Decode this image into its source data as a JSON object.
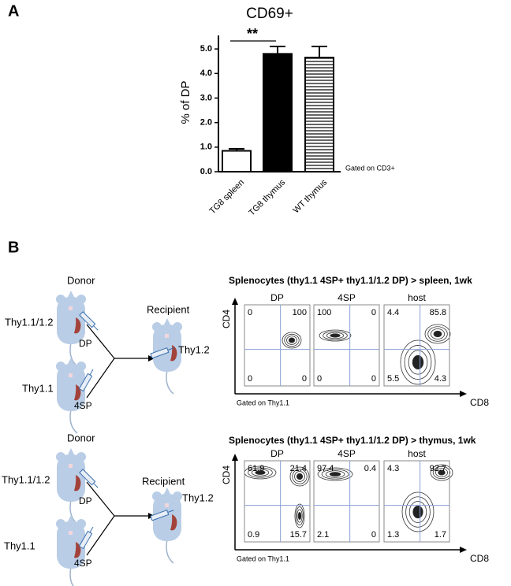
{
  "panel_a": {
    "label": "A"
  },
  "chart_data": {
    "type": "bar",
    "title": "CD69+",
    "y_label": "% of DP",
    "categories": [
      "TG8 spleen",
      "TG8 thymus",
      "WT thymus"
    ],
    "values": [
      0.85,
      4.8,
      4.65
    ],
    "errors": [
      0.08,
      0.3,
      0.45
    ],
    "colors": [
      "#ffffff",
      "#000000",
      "#ffffff"
    ],
    "hatch": [
      false,
      false,
      true
    ],
    "ylim": [
      0,
      5.55
    ],
    "yticks": [
      {
        "value": 0,
        "label": "0.0"
      },
      {
        "value": 1,
        "label": "1.0"
      },
      {
        "value": 2,
        "label": "2.0"
      },
      {
        "value": 3,
        "label": "3.0"
      },
      {
        "value": 4,
        "label": "4.0"
      },
      {
        "value": 5,
        "label": "5.0"
      }
    ],
    "significance": "**",
    "note": "Gated on CD3+"
  },
  "panel_b": {
    "label": "B",
    "rows": [
      {
        "title": "Splenocytes (thy1.1 4SP+ thy1.1/1.2 DP) > spleen, 1wk",
        "donor": "Donor",
        "donor_top": "Thy1.1/1.2",
        "dp": "DP",
        "donor_bottom": "Thy1.1",
        "sp4": "4SP",
        "recipient": "Recipient",
        "recipient_strain": "Thy1.2",
        "y_axis": "CD4",
        "x_axis": "CD8",
        "gate": "Gated on Thy1.1",
        "plots": [
          {
            "label": "DP",
            "quadrants": [
              0,
              100,
              0,
              0
            ]
          },
          {
            "label": "4SP",
            "quadrants": [
              100,
              0,
              0,
              0
            ]
          },
          {
            "label": "host",
            "quadrants": [
              4.4,
              85.8,
              5.5,
              4.3
            ]
          }
        ]
      },
      {
        "title": "Splenocytes (thy1.1 4SP+ thy1.1/1.2 DP) > thymus, 1wk",
        "donor": "Donor",
        "donor_top": "Thy1.1/1.2",
        "dp": "DP",
        "donor_bottom": "Thy1.1",
        "sp4": "4SP",
        "recipient": "Recipient",
        "recipient_strain": "Thy1.2",
        "y_axis": "CD4",
        "x_axis": "CD8",
        "gate": "Gated on Thy1.1",
        "plots": [
          {
            "label": "DP",
            "quadrants": [
              61.9,
              21.4,
              0.9,
              15.7
            ]
          },
          {
            "label": "4SP",
            "quadrants": [
              97.4,
              0.4,
              2.1,
              0
            ]
          },
          {
            "label": "host",
            "quadrants": [
              4.3,
              92.7,
              1.3,
              1.7
            ]
          }
        ]
      }
    ]
  }
}
